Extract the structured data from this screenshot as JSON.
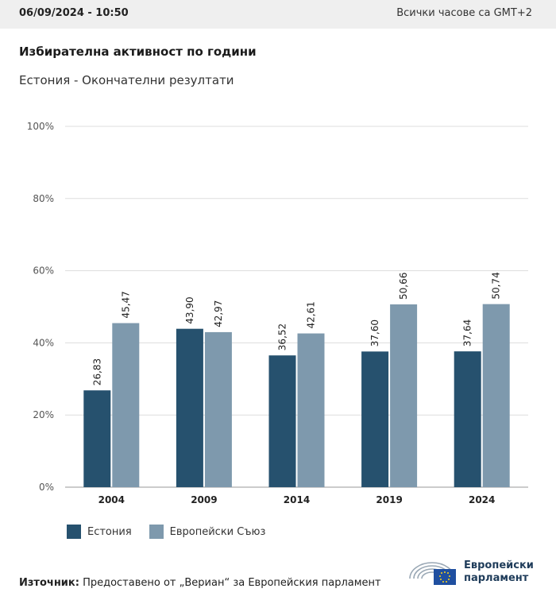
{
  "header": {
    "datetime": "06/09/2024 - 10:50",
    "timezone": "Всички часове са GMT+2"
  },
  "title": "Избирателна активност по години",
  "subtitle": "Естония - Окончателни резултати",
  "colors": {
    "estonia": "#26516e",
    "eu": "#7e99ad",
    "grid": "#dddddd",
    "axis": "#999999"
  },
  "chart_data": {
    "type": "bar",
    "categories": [
      "2004",
      "2009",
      "2014",
      "2019",
      "2024"
    ],
    "series": [
      {
        "name": "Естония",
        "values": [
          26.83,
          43.9,
          36.52,
          37.6,
          37.64
        ],
        "labels": [
          "26,83",
          "43,90",
          "36,52",
          "37,60",
          "37,64"
        ]
      },
      {
        "name": "Европейски Съюз",
        "values": [
          45.47,
          42.97,
          42.61,
          50.66,
          50.74
        ],
        "labels": [
          "45,47",
          "42,97",
          "42,61",
          "50,66",
          "50,74"
        ]
      }
    ],
    "yticks": [
      0,
      20,
      40,
      60,
      80,
      100
    ],
    "ytick_labels": [
      "0%",
      "20%",
      "40%",
      "60%",
      "80%",
      "100%"
    ],
    "ylim": [
      0,
      100
    ],
    "grid": true,
    "legend_position": "bottom-left"
  },
  "legend": {
    "estonia": "Естония",
    "eu": "Европейски Съюз"
  },
  "source": {
    "label": "Източник:",
    "text": " Предоставено от „Вериан“ за Европейския парламент"
  },
  "logo": {
    "line1": "Европейски",
    "line2": "парламент"
  }
}
